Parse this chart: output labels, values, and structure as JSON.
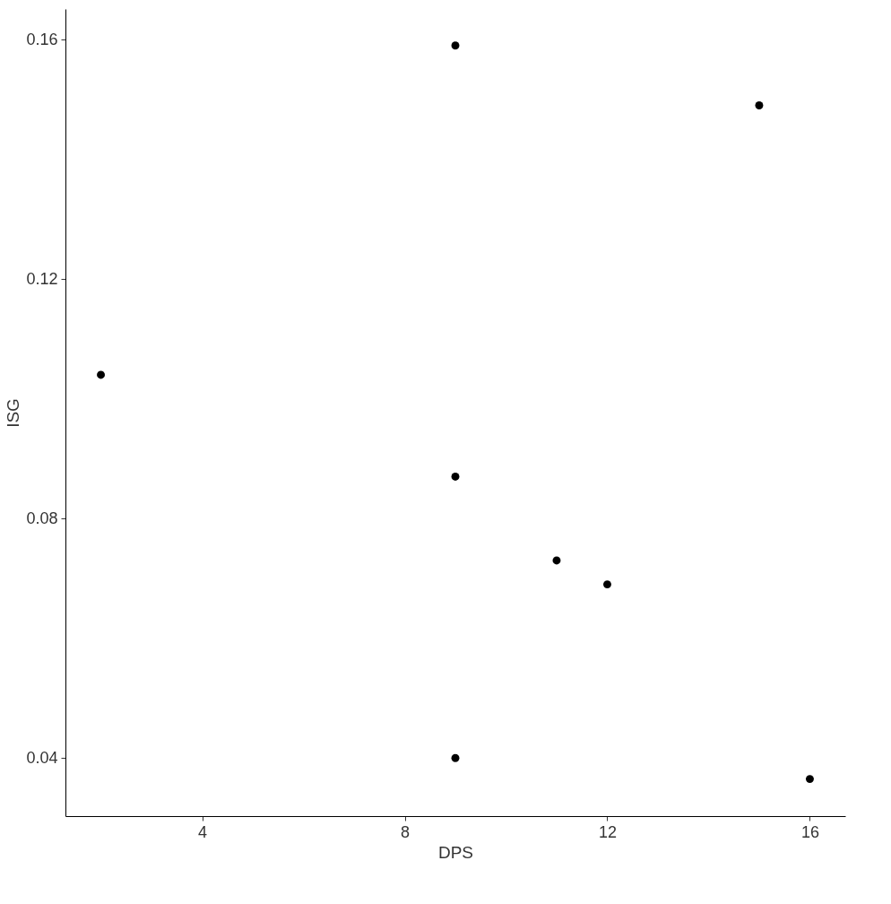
{
  "chart_data": {
    "type": "scatter",
    "xlabel": "DPS",
    "ylabel": "ISG",
    "x": [
      2,
      9,
      15,
      9,
      11,
      12,
      9,
      16
    ],
    "series": [
      {
        "color": "#000000",
        "values": [
          0.104,
          0.159,
          0.149,
          0.087,
          0.073,
          0.069,
          0.04,
          0.0365
        ]
      }
    ],
    "xlim": [
      1.3,
      16.7
    ],
    "xticks": [
      4,
      8,
      12,
      16
    ],
    "ylim": [
      0.0303,
      0.1651
    ],
    "yticks": [
      0.04,
      0.08,
      0.12,
      0.16
    ],
    "grid": false,
    "legend": false,
    "marker": "circle"
  }
}
